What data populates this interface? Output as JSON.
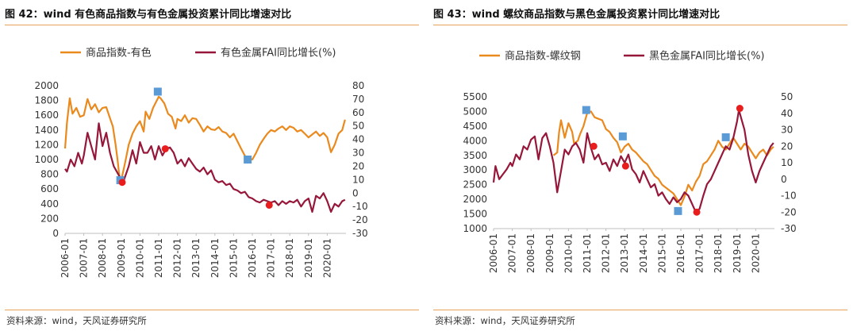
{
  "source_text": "资料来源：wind，天风证券研究所",
  "charts": [
    {
      "title": "图 42：wind 有色商品指数与有色金属投资累计同比增速对比",
      "source": "资料来源：wind，天风证券研究所",
      "colors": {
        "index": "#ea8a1e",
        "fai": "#961739",
        "square": "#5b9bd5",
        "dot": "#e81e1e"
      }
    },
    {
      "title": "图 43：wind 螺纹商品指数与黑色金属投资累计同比增速对比",
      "source": "资料来源：wind，天风证券研究所",
      "colors": {
        "index": "#ea8a1e",
        "fai": "#961739",
        "square": "#5b9bd5",
        "dot": "#e81e1e"
      }
    }
  ],
  "chart_data": [
    {
      "type": "line",
      "x_ticks": [
        "2006-01",
        "2007-01",
        "2008-01",
        "2009-01",
        "2010-01",
        "2011-01",
        "2012-01",
        "2013-01",
        "2014-01",
        "2015-01",
        "2016-01",
        "2017-01",
        "2018-01",
        "2019-01",
        "2020-01"
      ],
      "xlim": [
        2006.0,
        2021.0
      ],
      "y_left": {
        "ylim": [
          0,
          2000
        ],
        "ticks": [
          0,
          200,
          400,
          600,
          800,
          1000,
          1200,
          1400,
          1600,
          1800,
          2000
        ]
      },
      "y_right": {
        "ylim": [
          -30,
          80
        ],
        "ticks": [
          -30,
          -20,
          -10,
          0,
          10,
          20,
          30,
          40,
          50,
          60,
          70,
          80
        ]
      },
      "series": [
        {
          "name": "商品指数-有色",
          "axis": "left",
          "x": [
            2006.0,
            2006.1,
            2006.25,
            2006.4,
            2006.6,
            2006.8,
            2007.0,
            2007.2,
            2007.4,
            2007.6,
            2007.8,
            2008.0,
            2008.2,
            2008.4,
            2008.55,
            2008.7,
            2008.8,
            2008.9,
            2009.0,
            2009.2,
            2009.4,
            2009.6,
            2009.8,
            2010.0,
            2010.2,
            2010.3,
            2010.5,
            2010.7,
            2010.9,
            2011.0,
            2011.1,
            2011.3,
            2011.5,
            2011.7,
            2011.9,
            2012.0,
            2012.2,
            2012.4,
            2012.6,
            2012.8,
            2013.0,
            2013.2,
            2013.4,
            2013.6,
            2013.8,
            2014.0,
            2014.2,
            2014.4,
            2014.6,
            2014.8,
            2015.0,
            2015.2,
            2015.4,
            2015.6,
            2015.8,
            2016.0,
            2016.2,
            2016.4,
            2016.6,
            2016.8,
            2017.0,
            2017.2,
            2017.4,
            2017.6,
            2017.8,
            2018.0,
            2018.2,
            2018.4,
            2018.6,
            2018.8,
            2019.0,
            2019.2,
            2019.4,
            2019.6,
            2019.8,
            2020.0,
            2020.2,
            2020.4,
            2020.6,
            2020.8,
            2020.95
          ],
          "values": [
            1150,
            1500,
            1830,
            1620,
            1700,
            1580,
            1600,
            1820,
            1680,
            1750,
            1640,
            1700,
            1710,
            1560,
            1450,
            1200,
            1000,
            780,
            720,
            950,
            1200,
            1350,
            1450,
            1520,
            1380,
            1650,
            1550,
            1700,
            1800,
            1850,
            1830,
            1760,
            1620,
            1580,
            1420,
            1550,
            1520,
            1600,
            1500,
            1560,
            1550,
            1470,
            1380,
            1450,
            1410,
            1400,
            1440,
            1380,
            1360,
            1300,
            1350,
            1250,
            1150,
            1050,
            1020,
            1000,
            1090,
            1200,
            1280,
            1350,
            1400,
            1380,
            1420,
            1450,
            1400,
            1450,
            1430,
            1380,
            1400,
            1350,
            1300,
            1340,
            1380,
            1320,
            1360,
            1300,
            1100,
            1200,
            1350,
            1400,
            1540
          ]
        },
        {
          "name": "有色金属FAI同比增长(%)",
          "axis": "right",
          "x": [
            2006.0,
            2006.1,
            2006.3,
            2006.5,
            2006.7,
            2006.9,
            2007.0,
            2007.2,
            2007.4,
            2007.6,
            2007.8,
            2008.0,
            2008.2,
            2008.4,
            2008.6,
            2008.8,
            2009.0,
            2009.1,
            2009.2,
            2009.4,
            2009.6,
            2009.8,
            2010.0,
            2010.2,
            2010.4,
            2010.6,
            2010.8,
            2011.0,
            2011.2,
            2011.4,
            2011.6,
            2011.8,
            2012.0,
            2012.2,
            2012.4,
            2012.6,
            2012.8,
            2013.0,
            2013.2,
            2013.4,
            2013.6,
            2013.8,
            2014.0,
            2014.2,
            2014.4,
            2014.6,
            2014.8,
            2015.0,
            2015.2,
            2015.4,
            2015.6,
            2015.8,
            2016.0,
            2016.2,
            2016.4,
            2016.6,
            2016.8,
            2017.0,
            2017.2,
            2017.4,
            2017.6,
            2017.8,
            2018.0,
            2018.2,
            2018.4,
            2018.6,
            2018.8,
            2019.0,
            2019.2,
            2019.4,
            2019.6,
            2019.8,
            2020.0,
            2020.2,
            2020.4,
            2020.6,
            2020.8,
            2020.95
          ],
          "values": [
            18,
            16,
            25,
            20,
            30,
            22,
            28,
            45,
            35,
            25,
            52,
            35,
            45,
            30,
            20,
            15,
            10,
            8,
            12,
            20,
            32,
            22,
            38,
            30,
            30,
            35,
            25,
            35,
            28,
            33,
            34,
            30,
            22,
            25,
            20,
            26,
            22,
            18,
            16,
            19,
            14,
            17,
            10,
            8,
            9,
            6,
            7,
            3,
            2,
            0,
            1,
            -3,
            -4,
            -6,
            -7,
            -5,
            -6,
            -7,
            -6,
            -9,
            -6,
            -8,
            -6,
            -7,
            -5,
            -10,
            -6,
            -4,
            -14,
            -2,
            -4,
            0,
            -6,
            -14,
            -8,
            -10,
            -6,
            -5
          ]
        }
      ],
      "markers": {
        "square_left": [
          [
            2008.95,
            720
          ],
          [
            2010.95,
            1920
          ],
          [
            2015.75,
            1000
          ]
        ],
        "dot_right": [
          [
            2009.05,
            8
          ],
          [
            2011.35,
            33
          ],
          [
            2016.9,
            -9
          ]
        ]
      }
    },
    {
      "type": "line",
      "x_ticks": [
        "2006-01",
        "2007-01",
        "2008-01",
        "2009-01",
        "2010-01",
        "2011-01",
        "2012-01",
        "2013-01",
        "2014-01",
        "2015-01",
        "2016-01",
        "2017-01",
        "2018-01",
        "2019-01",
        "2020-01"
      ],
      "xlim": [
        2006.0,
        2021.0
      ],
      "y_left": {
        "ylim": [
          1000,
          5500
        ],
        "ticks": [
          1000,
          1500,
          2000,
          2500,
          3000,
          3500,
          4000,
          4500,
          5000,
          5500
        ]
      },
      "y_right": {
        "ylim": [
          -30,
          50
        ],
        "ticks": [
          -30,
          -20,
          -10,
          0,
          10,
          20,
          30,
          40,
          50
        ]
      },
      "series": [
        {
          "name": "商品指数-螺纹钢",
          "axis": "left",
          "x": [
            2009.2,
            2009.4,
            2009.5,
            2009.6,
            2009.8,
            2010.0,
            2010.2,
            2010.3,
            2010.5,
            2010.6,
            2010.8,
            2011.0,
            2011.2,
            2011.4,
            2011.6,
            2011.8,
            2012.0,
            2012.2,
            2012.4,
            2012.6,
            2012.8,
            2013.0,
            2013.2,
            2013.4,
            2013.6,
            2013.8,
            2014.0,
            2014.2,
            2014.4,
            2014.6,
            2014.8,
            2015.0,
            2015.2,
            2015.4,
            2015.6,
            2015.8,
            2016.0,
            2016.2,
            2016.4,
            2016.6,
            2016.8,
            2017.0,
            2017.2,
            2017.4,
            2017.6,
            2017.8,
            2018.0,
            2018.2,
            2018.4,
            2018.6,
            2018.8,
            2019.0,
            2019.2,
            2019.4,
            2019.6,
            2019.8,
            2020.0,
            2020.2,
            2020.4,
            2020.6,
            2020.8,
            2020.95
          ],
          "values": [
            3500,
            3600,
            4300,
            4700,
            4100,
            4600,
            4300,
            3900,
            4000,
            4200,
            4500,
            4950,
            5000,
            4800,
            4750,
            4700,
            4400,
            4300,
            4100,
            3950,
            3600,
            3800,
            3900,
            3700,
            3600,
            3450,
            3300,
            3200,
            3000,
            2800,
            2700,
            2500,
            2400,
            2300,
            2200,
            2000,
            1800,
            2100,
            2500,
            2300,
            2600,
            2800,
            3200,
            3300,
            3500,
            3700,
            4000,
            3800,
            3700,
            3900,
            4100,
            3900,
            3700,
            3900,
            3800,
            3600,
            3400,
            3600,
            3700,
            3500,
            3700,
            3800
          ]
        },
        {
          "name": "黑色金属FAI同比增长(%)",
          "axis": "right",
          "x": [
            2006.0,
            2006.1,
            2006.3,
            2006.5,
            2006.7,
            2006.9,
            2007.0,
            2007.2,
            2007.4,
            2007.6,
            2007.8,
            2008.0,
            2008.2,
            2008.4,
            2008.6,
            2008.8,
            2009.0,
            2009.2,
            2009.4,
            2009.6,
            2009.8,
            2010.0,
            2010.2,
            2010.4,
            2010.6,
            2010.8,
            2011.0,
            2011.2,
            2011.4,
            2011.6,
            2011.8,
            2012.0,
            2012.2,
            2012.4,
            2012.6,
            2012.8,
            2013.0,
            2013.2,
            2013.4,
            2013.6,
            2013.8,
            2014.0,
            2014.2,
            2014.4,
            2014.6,
            2014.8,
            2015.0,
            2015.2,
            2015.4,
            2015.6,
            2015.8,
            2016.0,
            2016.2,
            2016.4,
            2016.6,
            2016.8,
            2017.0,
            2017.2,
            2017.4,
            2017.6,
            2017.8,
            2018.0,
            2018.2,
            2018.4,
            2018.6,
            2018.8,
            2019.0,
            2019.1,
            2019.2,
            2019.4,
            2019.6,
            2019.8,
            2020.0,
            2020.2,
            2020.4,
            2020.6,
            2020.8,
            2020.95
          ],
          "values": [
            -2,
            8,
            0,
            3,
            6,
            10,
            8,
            15,
            12,
            20,
            18,
            24,
            26,
            12,
            25,
            28,
            20,
            10,
            -8,
            5,
            18,
            15,
            20,
            22,
            18,
            10,
            28,
            19,
            12,
            15,
            9,
            10,
            5,
            12,
            8,
            14,
            10,
            15,
            6,
            3,
            -2,
            5,
            0,
            -5,
            -3,
            -10,
            -8,
            -12,
            -15,
            -11,
            -14,
            -12,
            -8,
            -10,
            -15,
            -20,
            -18,
            -10,
            -3,
            0,
            5,
            10,
            15,
            20,
            18,
            25,
            35,
            42,
            38,
            30,
            15,
            5,
            -2,
            5,
            10,
            15,
            20,
            22
          ]
        }
      ],
      "markers": {
        "square_left": [
          [
            2010.95,
            5050
          ],
          [
            2012.9,
            4150
          ],
          [
            2015.85,
            1600
          ],
          [
            2018.4,
            4120
          ]
        ],
        "dot_right": [
          [
            2011.35,
            20
          ],
          [
            2013.05,
            8
          ],
          [
            2016.85,
            -20
          ],
          [
            2019.15,
            43
          ]
        ]
      }
    }
  ],
  "legend": [
    {
      "label_index": "商品指数-有色",
      "label_fai": "有色金属FAI同比增长(%)"
    },
    {
      "label_index": "商品指数-螺纹钢",
      "label_fai": "黑色金属FAI同比增长(%)"
    }
  ]
}
